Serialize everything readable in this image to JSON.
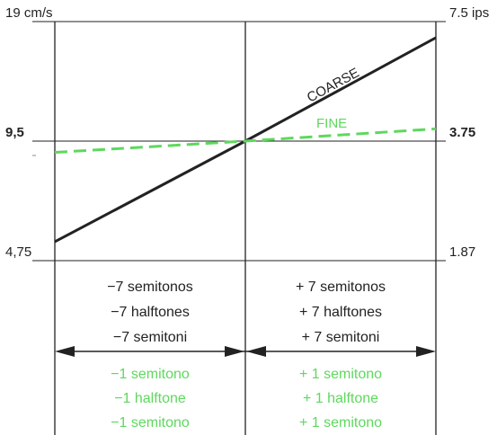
{
  "chart_data": {
    "type": "line",
    "x": [
      -1,
      0,
      1
    ],
    "left_axis": {
      "ticks": [
        {
          "value": 19,
          "label": "19 cm/s",
          "bold": false
        },
        {
          "value": 9.5,
          "label": "9,5",
          "bold": true
        },
        {
          "value": 4.75,
          "label": "4,75",
          "bold": false
        }
      ],
      "log_scale": true
    },
    "right_axis": {
      "ticks": [
        {
          "value": 7.5,
          "label": "7.5 ips",
          "bold": false
        },
        {
          "value": 3.75,
          "label": "3.75",
          "bold": true
        },
        {
          "value": 1.87,
          "label": "1.87",
          "bold": false
        }
      ]
    },
    "ylim": [
      4.75,
      19
    ],
    "grid": true,
    "series": [
      {
        "name": "COARSE",
        "color": "#222222",
        "dash": "solid",
        "y": [
          5.3,
          9.5,
          17.3
        ]
      },
      {
        "name": "FINE",
        "color": "#5ed85e",
        "dash": "dashed",
        "y": [
          8.9,
          9.5,
          10.2
        ]
      }
    ],
    "table": {
      "coarse": {
        "left": [
          "−7 semitonos",
          "−7 halftones",
          "−7 semitoni"
        ],
        "right": [
          "+ 7 semitonos",
          "+ 7 halftones",
          "+ 7 semitoni"
        ],
        "color": "#222222"
      },
      "fine": {
        "left": [
          "−1 semitono",
          "−1 halftone",
          "−1 semitono"
        ],
        "right": [
          "+ 1 semitono",
          "+ 1 halftone",
          "+ 1 semitono"
        ],
        "color": "#5ed85e"
      }
    }
  }
}
